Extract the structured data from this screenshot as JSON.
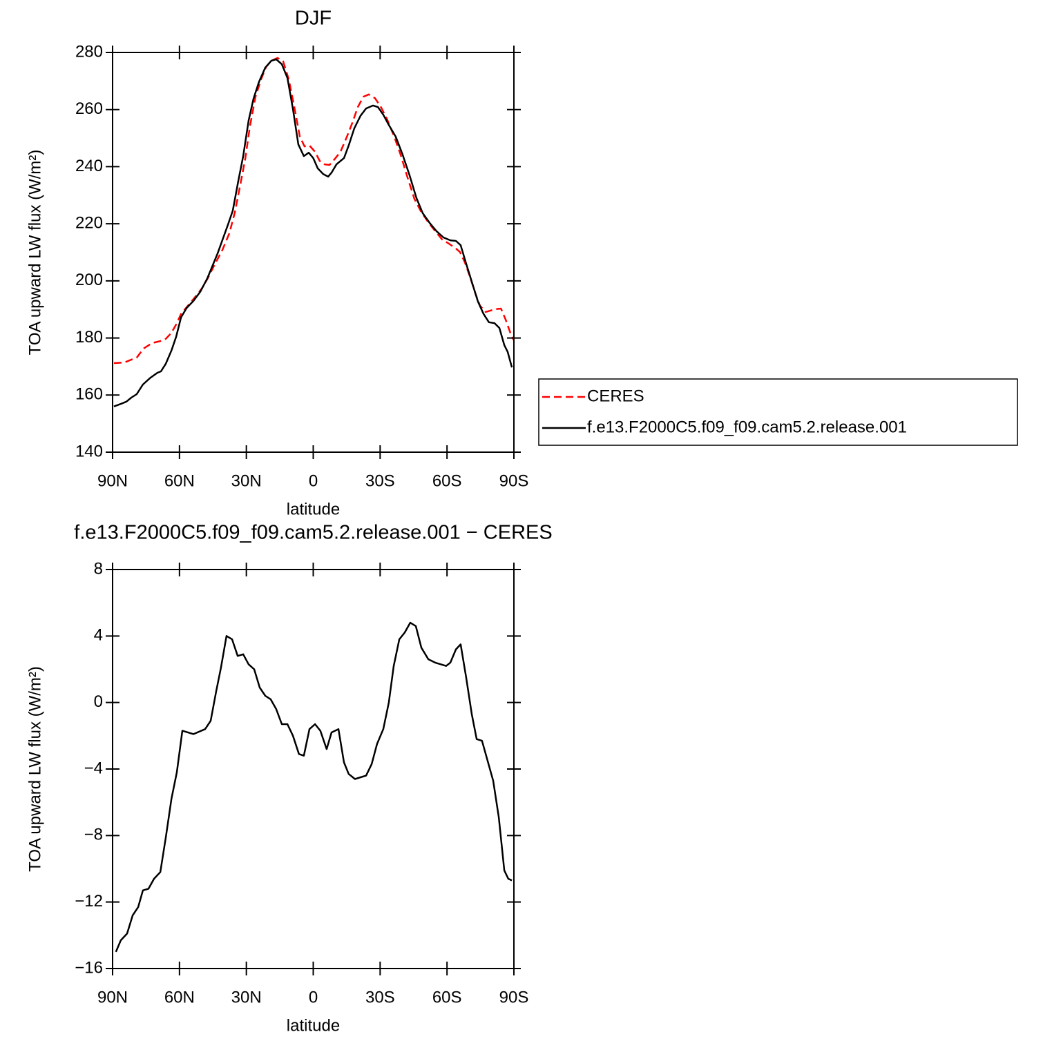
{
  "chart_data": [
    {
      "type": "line",
      "title": "DJF",
      "xlabel": "latitude",
      "ylabel": "TOA upward LW flux (W/m²)",
      "xlim": [
        90,
        -90
      ],
      "xticks": [
        {
          "value": 90,
          "label": "90N"
        },
        {
          "value": 60,
          "label": "60N"
        },
        {
          "value": 30,
          "label": "30N"
        },
        0,
        {
          "value": -30,
          "label": "30S"
        },
        {
          "value": -60,
          "label": "60S"
        },
        {
          "value": -90,
          "label": "90S"
        }
      ],
      "ylim": [
        140,
        280
      ],
      "yticks": [
        140,
        160,
        180,
        200,
        220,
        240,
        260,
        280
      ],
      "legend": "right",
      "series": [
        {
          "name": "CERES",
          "color": "#ff0000",
          "dash": "dashed",
          "x": [
            89.4,
            84.7,
            81.6,
            79.2,
            76.1,
            72.3,
            68.6,
            66.1,
            63.6,
            61.5,
            59.3,
            56.2,
            53.1,
            50.0,
            47.6,
            44.5,
            40.7,
            37.6,
            35.2,
            32.7,
            30.5,
            28.4,
            25.9,
            23.4,
            21.2,
            18.8,
            16.0,
            13.5,
            11.0,
            8.5,
            6.0,
            3.9,
            1.7,
            -0.8,
            -2.9,
            -5.1,
            -7.3,
            -9.8,
            -12.2,
            -15.0,
            -17.5,
            -20.0,
            -22.5,
            -24.9,
            -27.7,
            -30.5,
            -33.0,
            -36.1,
            -39.2,
            -42.3,
            -45.4,
            -48.5,
            -51.6,
            -54.7,
            -57.8,
            -60.9,
            -64.0,
            -65.8,
            -68.0,
            -70.2,
            -72.7,
            -74.8,
            -77.3,
            -79.5,
            -82.0,
            -84.2,
            -86.3,
            -88.8,
            -90.0
          ],
          "values": [
            171.2,
            171.4,
            172.4,
            173.1,
            176.3,
            178.2,
            178.9,
            179.7,
            181.8,
            184.7,
            188.4,
            191.3,
            194.2,
            197.3,
            200.5,
            205.3,
            210.9,
            216.7,
            223.9,
            233.8,
            242.8,
            254.1,
            264.5,
            270.6,
            274.9,
            277.1,
            278.1,
            276.9,
            270.6,
            260.9,
            250.5,
            247.1,
            247.4,
            245.2,
            242.0,
            240.8,
            240.6,
            242.8,
            245.2,
            250.3,
            255.3,
            260.9,
            264.5,
            265.3,
            264.0,
            260.7,
            256.8,
            251.0,
            244.2,
            236.2,
            228.7,
            224.1,
            220.5,
            217.4,
            214.5,
            213.0,
            211.3,
            210.1,
            206.5,
            201.7,
            195.6,
            191.3,
            189.1,
            189.6,
            190.1,
            190.3,
            186.4,
            180.9,
            179.2
          ]
        },
        {
          "name": "f.e13.F2000C5.f09_f09.cam5.2.release.001",
          "color": "#000000",
          "dash": "solid",
          "x": [
            89.4,
            86.3,
            83.8,
            81.6,
            79.2,
            76.4,
            73.0,
            69.9,
            68.3,
            66.1,
            63.6,
            61.5,
            59.3,
            56.8,
            53.7,
            50.6,
            47.5,
            42.9,
            38.2,
            36.1,
            33.6,
            31.4,
            29.0,
            26.8,
            24.3,
            21.5,
            18.8,
            16.6,
            14.1,
            11.6,
            9.1,
            6.7,
            4.2,
            2.0,
            0,
            -2.0,
            -4.5,
            -6.7,
            -8.2,
            -10.4,
            -13.8,
            -15.9,
            -18.4,
            -21.2,
            -23.7,
            -26.8,
            -29.0,
            -31.4,
            -33.9,
            -37.0,
            -40.1,
            -43.2,
            -46.3,
            -49.1,
            -52.2,
            -55.3,
            -58.4,
            -61.5,
            -64.0,
            -66.1,
            -68.6,
            -71.1,
            -73.9,
            -76.4,
            -78.8,
            -81.3,
            -83.5,
            -85.7,
            -87.2,
            -89.1
          ],
          "values": [
            156.0,
            156.9,
            157.7,
            159.1,
            160.3,
            163.7,
            166.1,
            167.8,
            168.3,
            171.0,
            175.6,
            180.4,
            187.2,
            190.5,
            193.0,
            196.3,
            200.9,
            209.6,
            219.8,
            224.6,
            235.0,
            243.7,
            256.1,
            263.8,
            269.8,
            274.7,
            277.1,
            277.6,
            275.9,
            271.1,
            260.2,
            247.8,
            243.7,
            244.9,
            243.0,
            239.4,
            237.4,
            236.5,
            237.9,
            240.8,
            243.0,
            247.4,
            253.4,
            257.8,
            260.4,
            261.4,
            260.9,
            258.2,
            254.6,
            250.5,
            244.2,
            237.0,
            229.0,
            223.7,
            220.3,
            217.4,
            215.2,
            214.2,
            214.0,
            212.5,
            206.0,
            199.7,
            192.7,
            188.4,
            185.5,
            185.2,
            183.5,
            177.5,
            175.1,
            169.7
          ]
        }
      ]
    },
    {
      "type": "line",
      "title": "f.e13.F2000C5.f09_f09.cam5.2.release.001 − CERES",
      "xlabel": "latitude",
      "ylabel": "TOA upward LW flux (W/m²)",
      "xlim": [
        90,
        -90
      ],
      "xticks": [
        {
          "value": 90,
          "label": "90N"
        },
        {
          "value": 60,
          "label": "60N"
        },
        {
          "value": 30,
          "label": "30N"
        },
        0,
        {
          "value": -30,
          "label": "30S"
        },
        {
          "value": -60,
          "label": "60S"
        },
        {
          "value": -90,
          "label": "90S"
        }
      ],
      "ylim": [
        -16,
        8
      ],
      "yticks": [
        {
          "value": -16,
          "label": "−16"
        },
        {
          "value": -12,
          "label": "−12"
        },
        {
          "value": -8,
          "label": "−8"
        },
        {
          "value": -4,
          "label": "−4"
        },
        0,
        4,
        8
      ],
      "series": [
        {
          "color": "#000000",
          "dash": "solid",
          "x": [
            88.5,
            86.3,
            83.5,
            81.0,
            78.5,
            76.4,
            73.9,
            71.4,
            68.6,
            66.1,
            63.6,
            61.2,
            58.7,
            53.7,
            48.5,
            46.0,
            43.5,
            41.4,
            38.9,
            36.4,
            33.9,
            31.4,
            29.0,
            26.5,
            24.0,
            21.5,
            19.1,
            16.6,
            14.1,
            11.6,
            9.1,
            6.4,
            4.2,
            1.7,
            -0.8,
            -3.2,
            -6.0,
            -8.2,
            -11.3,
            -13.8,
            -15.9,
            -18.7,
            -21.2,
            -23.7,
            -26.2,
            -28.6,
            -31.4,
            -33.9,
            -36.1,
            -38.6,
            -41.0,
            -43.5,
            -46.0,
            -48.5,
            -51.6,
            -54.7,
            -57.2,
            -59.6,
            -61.5,
            -64.0,
            -66.1,
            -68.6,
            -71.1,
            -73.3,
            -75.7,
            -78.2,
            -80.7,
            -83.2,
            -85.7,
            -87.5,
            -89.1
          ],
          "values": [
            -15.0,
            -14.3,
            -13.9,
            -12.8,
            -12.3,
            -11.3,
            -11.2,
            -10.6,
            -10.2,
            -8.1,
            -5.8,
            -4.2,
            -1.7,
            -1.9,
            -1.6,
            -1.1,
            0.7,
            2.1,
            4.0,
            3.8,
            2.8,
            2.9,
            2.3,
            2.0,
            0.9,
            0.4,
            0.2,
            -0.4,
            -1.3,
            -1.3,
            -2.0,
            -3.1,
            -3.2,
            -1.6,
            -1.3,
            -1.7,
            -2.8,
            -1.8,
            -1.6,
            -3.6,
            -4.3,
            -4.6,
            -4.5,
            -4.4,
            -3.7,
            -2.5,
            -1.6,
            0.0,
            2.2,
            3.8,
            4.2,
            4.8,
            4.6,
            3.3,
            2.6,
            2.4,
            2.3,
            2.2,
            2.4,
            3.2,
            3.5,
            1.5,
            -0.7,
            -2.2,
            -2.3,
            -3.5,
            -4.7,
            -6.9,
            -10.1,
            -10.6,
            -10.7
          ]
        }
      ]
    }
  ]
}
